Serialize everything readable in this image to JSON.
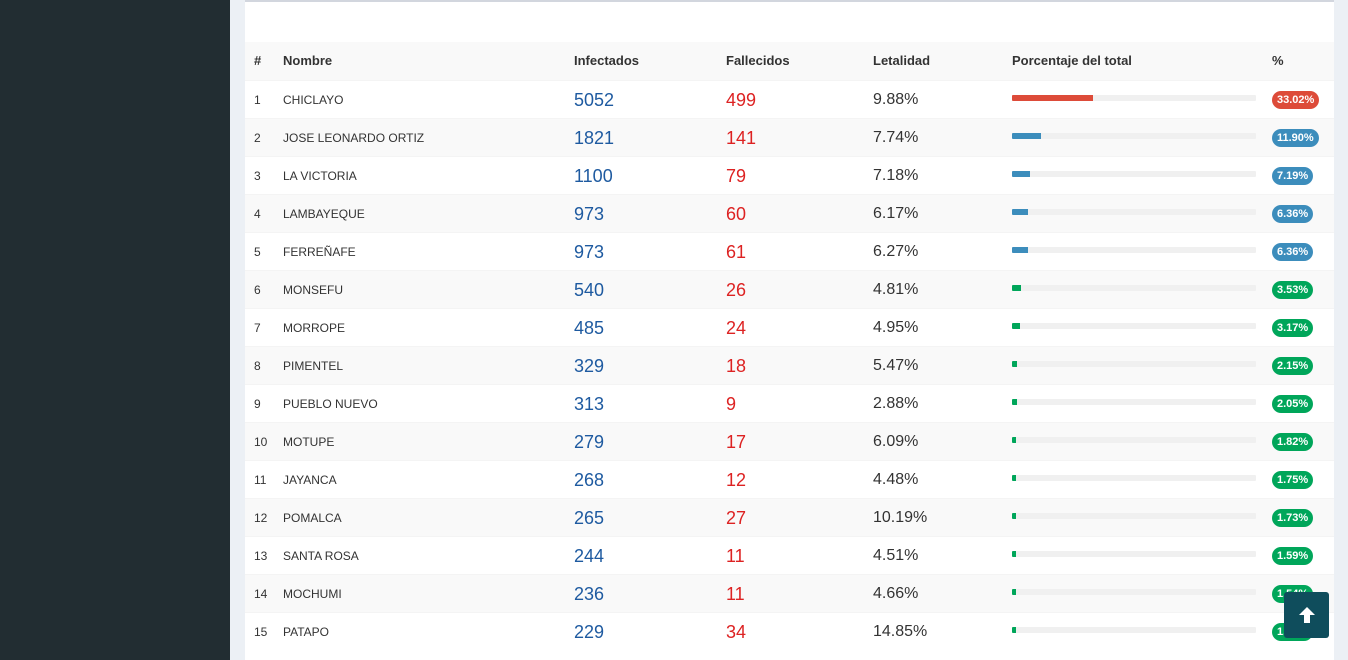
{
  "colors": {
    "red": "#dd4b39",
    "blue": "#3c8dbc",
    "green": "#00a65a"
  },
  "table": {
    "headers": {
      "num": "#",
      "name": "Nombre",
      "infectados": "Infectados",
      "fallecidos": "Fallecidos",
      "letalidad": "Letalidad",
      "porcentaje": "Porcentaje del total",
      "pct": "%"
    },
    "rows": [
      {
        "num": "1",
        "name": "CHICLAYO",
        "infectados": "5052",
        "fallecidos": "499",
        "letalidad": "9.88%",
        "pct_label": "33.02%",
        "pct": 33.02,
        "color": "#dd4b39"
      },
      {
        "num": "2",
        "name": "JOSE LEONARDO ORTIZ",
        "infectados": "1821",
        "fallecidos": "141",
        "letalidad": "7.74%",
        "pct_label": "11.90%",
        "pct": 11.9,
        "color": "#3c8dbc"
      },
      {
        "num": "3",
        "name": "LA VICTORIA",
        "infectados": "1100",
        "fallecidos": "79",
        "letalidad": "7.18%",
        "pct_label": "7.19%",
        "pct": 7.19,
        "color": "#3c8dbc"
      },
      {
        "num": "4",
        "name": "LAMBAYEQUE",
        "infectados": "973",
        "fallecidos": "60",
        "letalidad": "6.17%",
        "pct_label": "6.36%",
        "pct": 6.36,
        "color": "#3c8dbc"
      },
      {
        "num": "5",
        "name": "FERREÑAFE",
        "infectados": "973",
        "fallecidos": "61",
        "letalidad": "6.27%",
        "pct_label": "6.36%",
        "pct": 6.36,
        "color": "#3c8dbc"
      },
      {
        "num": "6",
        "name": "MONSEFU",
        "infectados": "540",
        "fallecidos": "26",
        "letalidad": "4.81%",
        "pct_label": "3.53%",
        "pct": 3.53,
        "color": "#00a65a"
      },
      {
        "num": "7",
        "name": "MORROPE",
        "infectados": "485",
        "fallecidos": "24",
        "letalidad": "4.95%",
        "pct_label": "3.17%",
        "pct": 3.17,
        "color": "#00a65a"
      },
      {
        "num": "8",
        "name": "PIMENTEL",
        "infectados": "329",
        "fallecidos": "18",
        "letalidad": "5.47%",
        "pct_label": "2.15%",
        "pct": 2.15,
        "color": "#00a65a"
      },
      {
        "num": "9",
        "name": "PUEBLO NUEVO",
        "infectados": "313",
        "fallecidos": "9",
        "letalidad": "2.88%",
        "pct_label": "2.05%",
        "pct": 2.05,
        "color": "#00a65a"
      },
      {
        "num": "10",
        "name": "MOTUPE",
        "infectados": "279",
        "fallecidos": "17",
        "letalidad": "6.09%",
        "pct_label": "1.82%",
        "pct": 1.82,
        "color": "#00a65a"
      },
      {
        "num": "11",
        "name": "JAYANCA",
        "infectados": "268",
        "fallecidos": "12",
        "letalidad": "4.48%",
        "pct_label": "1.75%",
        "pct": 1.75,
        "color": "#00a65a"
      },
      {
        "num": "12",
        "name": "POMALCA",
        "infectados": "265",
        "fallecidos": "27",
        "letalidad": "10.19%",
        "pct_label": "1.73%",
        "pct": 1.73,
        "color": "#00a65a"
      },
      {
        "num": "13",
        "name": "SANTA ROSA",
        "infectados": "244",
        "fallecidos": "11",
        "letalidad": "4.51%",
        "pct_label": "1.59%",
        "pct": 1.59,
        "color": "#00a65a"
      },
      {
        "num": "14",
        "name": "MOCHUMI",
        "infectados": "236",
        "fallecidos": "11",
        "letalidad": "4.66%",
        "pct_label": "1.54%",
        "pct": 1.54,
        "color": "#00a65a"
      },
      {
        "num": "15",
        "name": "PATAPO",
        "infectados": "229",
        "fallecidos": "34",
        "letalidad": "14.85%",
        "pct_label": "1.50%",
        "pct": 1.5,
        "color": "#00a65a"
      }
    ]
  },
  "scroll_top_icon": "arrow-up-icon"
}
